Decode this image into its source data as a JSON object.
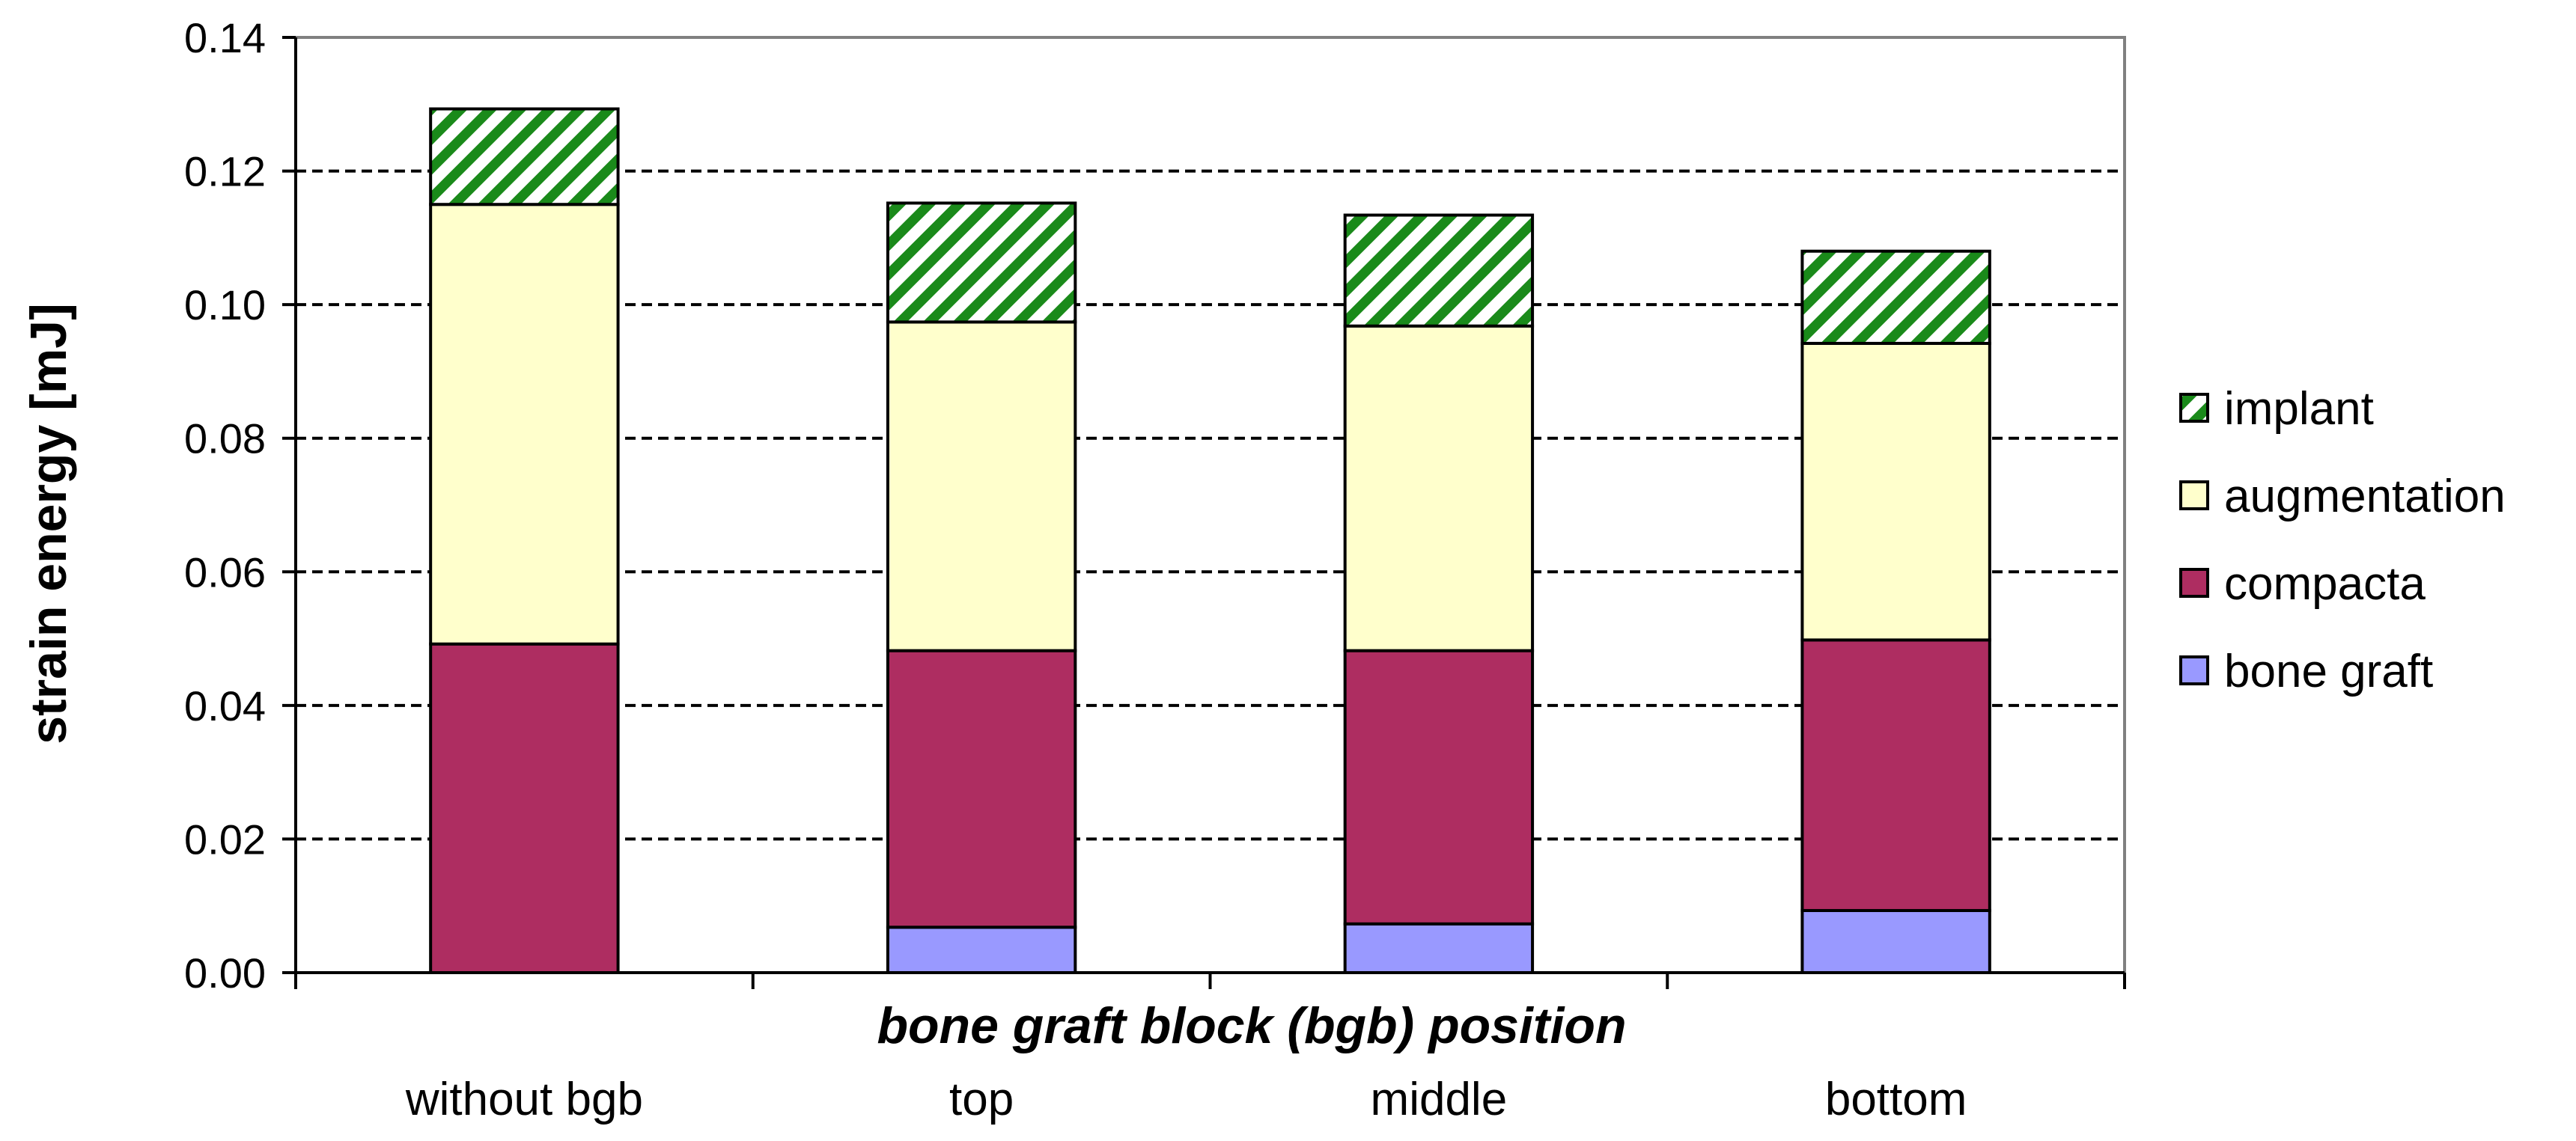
{
  "chart_data": {
    "type": "bar",
    "stacked": true,
    "title": "",
    "xlabel": "bone graft block (bgb) position",
    "ylabel": "strain energy  [mJ]",
    "ylim": [
      0,
      0.14
    ],
    "yticks": [
      "0.00",
      "0.02",
      "0.04",
      "0.06",
      "0.08",
      "0.10",
      "0.12",
      "0.14"
    ],
    "grid": "horizontal dashed",
    "legend_position": "right",
    "categories": [
      "without bgb",
      "top",
      "middle",
      "bottom"
    ],
    "series": [
      {
        "name": "bone graft",
        "color": "#9999ff",
        "pattern": "solid",
        "values": [
          0.0,
          0.0068,
          0.0073,
          0.0093
        ]
      },
      {
        "name": "compacta",
        "color": "#ae2d61",
        "pattern": "solid",
        "values": [
          0.0492,
          0.0414,
          0.0409,
          0.0405
        ]
      },
      {
        "name": "augmentation",
        "color": "#ffffcc",
        "pattern": "solid",
        "values": [
          0.0658,
          0.0492,
          0.0486,
          0.0444
        ]
      },
      {
        "name": "implant",
        "color": "#1a8a1a",
        "pattern": "diagonal-hatch",
        "values": [
          0.0143,
          0.0178,
          0.0166,
          0.0138
        ]
      }
    ],
    "legend_order": [
      "implant",
      "augmentation",
      "compacta",
      "bone graft"
    ]
  }
}
